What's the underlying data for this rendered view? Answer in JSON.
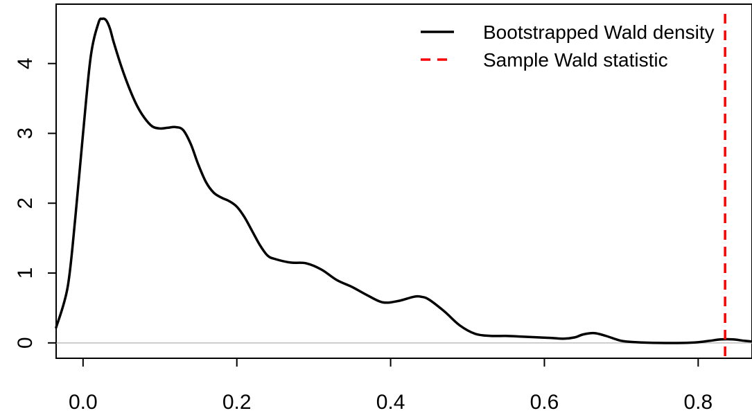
{
  "chart_data": {
    "type": "line",
    "title": "",
    "xlabel": "",
    "ylabel": "",
    "xlim": [
      -0.035,
      0.87
    ],
    "ylim": [
      -0.22,
      4.85
    ],
    "x_ticks": [
      0.0,
      0.2,
      0.4,
      0.6,
      0.8
    ],
    "x_tick_labels": [
      "0.0",
      "0.2",
      "0.4",
      "0.6",
      "0.8"
    ],
    "y_ticks": [
      0,
      1,
      2,
      3,
      4
    ],
    "y_tick_labels": [
      "0",
      "1",
      "2",
      "3",
      "4"
    ],
    "baseline": {
      "y": 0,
      "color": "#bebebe"
    },
    "series": [
      {
        "name": "Bootstrapped Wald density",
        "style": "solid",
        "color": "#000000",
        "x": [
          -0.035,
          -0.02,
          -0.01,
          0.0,
          0.01,
          0.02,
          0.025,
          0.03,
          0.035,
          0.04,
          0.05,
          0.06,
          0.07,
          0.08,
          0.09,
          0.1,
          0.11,
          0.12,
          0.13,
          0.14,
          0.15,
          0.16,
          0.17,
          0.18,
          0.19,
          0.2,
          0.21,
          0.22,
          0.23,
          0.24,
          0.25,
          0.27,
          0.29,
          0.31,
          0.33,
          0.35,
          0.37,
          0.39,
          0.41,
          0.43,
          0.44,
          0.45,
          0.47,
          0.49,
          0.51,
          0.53,
          0.55,
          0.57,
          0.59,
          0.61,
          0.625,
          0.64,
          0.65,
          0.665,
          0.68,
          0.7,
          0.72,
          0.75,
          0.78,
          0.8,
          0.815,
          0.83,
          0.845,
          0.86,
          0.87
        ],
        "y": [
          0.22,
          0.8,
          1.8,
          3.0,
          4.1,
          4.58,
          4.64,
          4.62,
          4.5,
          4.3,
          3.95,
          3.65,
          3.4,
          3.22,
          3.1,
          3.07,
          3.08,
          3.09,
          3.05,
          2.85,
          2.55,
          2.3,
          2.15,
          2.08,
          2.03,
          1.95,
          1.8,
          1.6,
          1.4,
          1.25,
          1.2,
          1.15,
          1.14,
          1.05,
          0.9,
          0.8,
          0.68,
          0.58,
          0.6,
          0.66,
          0.66,
          0.62,
          0.45,
          0.25,
          0.13,
          0.1,
          0.1,
          0.09,
          0.08,
          0.07,
          0.06,
          0.08,
          0.12,
          0.14,
          0.1,
          0.03,
          0.01,
          0.0,
          0.0,
          0.01,
          0.03,
          0.05,
          0.05,
          0.03,
          0.02
        ]
      },
      {
        "name": "Sample Wald statistic",
        "style": "dashed",
        "color": "#ff0000",
        "vline_x": 0.835
      }
    ],
    "legend": {
      "position": "top-right",
      "entries": [
        "Bootstrapped Wald density",
        "Sample Wald statistic"
      ]
    }
  }
}
